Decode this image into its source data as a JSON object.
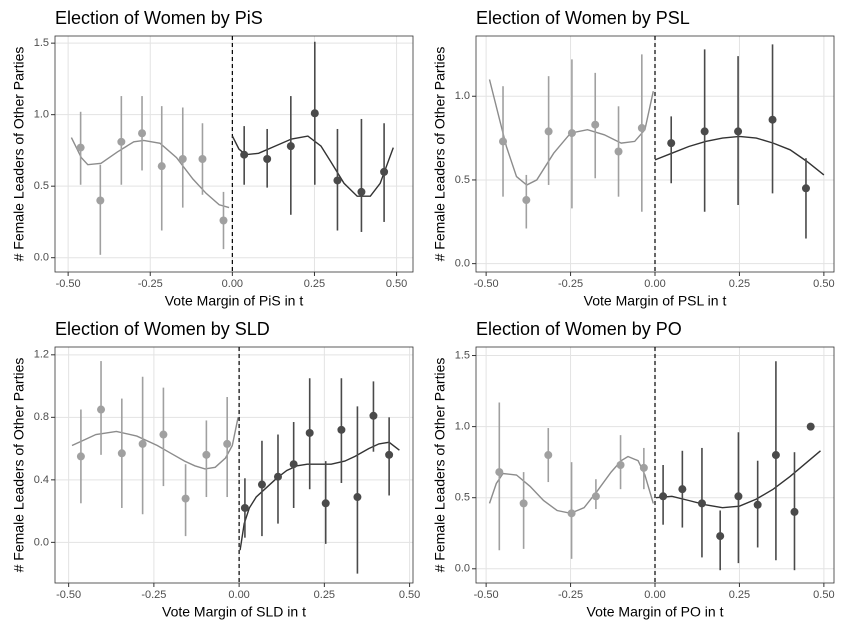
{
  "chart_data": [
    {
      "type": "scatter",
      "title": "Election of Women by PiS",
      "xlabel": "Vote Margin of PiS in t",
      "ylabel": "# Female Leaders of Other Parties",
      "xlim": [
        -0.54,
        0.55
      ],
      "ylim": [
        -0.1,
        1.55
      ],
      "cutoff": 0,
      "grid": true,
      "xticks": [
        {
          "value": -0.5,
          "label": "-0.50"
        },
        {
          "value": -0.25,
          "label": "-0.25"
        },
        {
          "value": 0,
          "label": "0.00"
        },
        {
          "value": 0.25,
          "label": "0.25"
        },
        {
          "value": 0.5,
          "label": "0.50"
        }
      ],
      "yticks": [
        {
          "value": 0,
          "label": "0.0"
        },
        {
          "value": 0.5,
          "label": "0.5"
        },
        {
          "value": 1,
          "label": "1.0"
        },
        {
          "value": 1.5,
          "label": "1.5"
        }
      ],
      "series": [
        {
          "color": "#a0a0a0",
          "x": [
            -0.462,
            -0.402,
            -0.338,
            -0.275,
            -0.215,
            -0.151,
            -0.091,
            -0.027
          ],
          "values": [
            0.77,
            0.4,
            0.81,
            0.87,
            0.64,
            0.69,
            0.69,
            0.26
          ],
          "lower": [
            0.51,
            0.02,
            0.51,
            0.61,
            0.19,
            0.35,
            0.44,
            0.06
          ],
          "upper": [
            1.02,
            0.65,
            1.13,
            1.13,
            1.06,
            1.05,
            0.94,
            0.46
          ]
        },
        {
          "color": "#4a4a4a",
          "x": [
            0.036,
            0.106,
            0.178,
            0.251,
            0.32,
            0.393,
            0.462
          ],
          "values": [
            0.72,
            0.69,
            0.78,
            1.01,
            0.54,
            0.46,
            0.6
          ],
          "lower": [
            0.51,
            0.49,
            0.3,
            0.51,
            0.19,
            0.18,
            0.25
          ],
          "upper": [
            0.92,
            0.9,
            1.13,
            1.51,
            0.9,
            0.97,
            0.94
          ]
        }
      ],
      "fits": [
        {
          "color": "#8c8c8c",
          "x": [
            -0.49,
            -0.46,
            -0.44,
            -0.4,
            -0.35,
            -0.3,
            -0.27,
            -0.22,
            -0.17,
            -0.12,
            -0.08,
            -0.04,
            -0.01
          ],
          "values": [
            0.84,
            0.7,
            0.65,
            0.66,
            0.74,
            0.81,
            0.82,
            0.8,
            0.7,
            0.55,
            0.45,
            0.37,
            0.35
          ]
        },
        {
          "color": "#333333",
          "x": [
            0.0,
            0.02,
            0.04,
            0.08,
            0.13,
            0.18,
            0.23,
            0.27,
            0.3,
            0.34,
            0.38,
            0.42,
            0.45,
            0.49
          ],
          "values": [
            0.85,
            0.76,
            0.72,
            0.73,
            0.78,
            0.83,
            0.85,
            0.78,
            0.67,
            0.52,
            0.43,
            0.43,
            0.52,
            0.77
          ]
        }
      ]
    },
    {
      "type": "scatter",
      "title": "Election of Women by PSL",
      "xlabel": "Vote Margin of PSL in t",
      "ylabel": "# Female Leaders of Other Parties",
      "xlim": [
        -0.53,
        0.53
      ],
      "ylim": [
        -0.05,
        1.36
      ],
      "cutoff": 0,
      "grid": true,
      "xticks": [
        {
          "value": -0.5,
          "label": "-0.50"
        },
        {
          "value": -0.25,
          "label": "-0.25"
        },
        {
          "value": 0,
          "label": "0.00"
        },
        {
          "value": 0.25,
          "label": "0.25"
        },
        {
          "value": 0.5,
          "label": "0.50"
        }
      ],
      "yticks": [
        {
          "value": 0,
          "label": "0.0"
        },
        {
          "value": 0.5,
          "label": "0.5"
        },
        {
          "value": 1,
          "label": "1.0"
        }
      ],
      "series": [
        {
          "color": "#a0a0a0",
          "x": [
            -0.45,
            -0.381,
            -0.315,
            -0.246,
            -0.177,
            -0.108,
            -0.039
          ],
          "values": [
            0.73,
            0.38,
            0.79,
            0.78,
            0.83,
            0.67,
            0.81
          ],
          "lower": [
            0.4,
            0.21,
            0.47,
            0.33,
            0.51,
            0.4,
            0.31
          ],
          "upper": [
            1.06,
            0.53,
            1.12,
            1.22,
            1.14,
            0.94,
            1.25
          ]
        },
        {
          "color": "#4a4a4a",
          "x": [
            0.048,
            0.147,
            0.246,
            0.348,
            0.447
          ],
          "values": [
            0.72,
            0.79,
            0.79,
            0.86,
            0.45
          ],
          "lower": [
            0.48,
            0.31,
            0.35,
            0.42,
            0.15
          ],
          "upper": [
            0.88,
            1.28,
            1.24,
            1.31,
            0.63
          ]
        }
      ],
      "fits": [
        {
          "color": "#8c8c8c",
          "x": [
            -0.49,
            -0.46,
            -0.44,
            -0.41,
            -0.38,
            -0.35,
            -0.3,
            -0.25,
            -0.2,
            -0.15,
            -0.1,
            -0.06,
            -0.03,
            -0.005
          ],
          "values": [
            1.1,
            0.86,
            0.7,
            0.52,
            0.47,
            0.5,
            0.66,
            0.78,
            0.8,
            0.77,
            0.72,
            0.73,
            0.8,
            1.03
          ]
        },
        {
          "color": "#333333",
          "x": [
            0.0,
            0.05,
            0.1,
            0.15,
            0.2,
            0.25,
            0.3,
            0.35,
            0.4,
            0.45,
            0.5
          ],
          "values": [
            0.62,
            0.66,
            0.7,
            0.73,
            0.75,
            0.76,
            0.75,
            0.72,
            0.68,
            0.61,
            0.53
          ]
        }
      ]
    },
    {
      "type": "scatter",
      "title": "Election of Women by SLD",
      "xlabel": "Vote Margin of SLD in t",
      "ylabel": "# Female Leaders of Other Parties",
      "xlim": [
        -0.54,
        0.51
      ],
      "ylim": [
        -0.26,
        1.25
      ],
      "cutoff": 0,
      "grid": true,
      "xticks": [
        {
          "value": -0.5,
          "label": "-0.50"
        },
        {
          "value": -0.25,
          "label": "-0.25"
        },
        {
          "value": 0,
          "label": "0.00"
        },
        {
          "value": 0.25,
          "label": "0.25"
        },
        {
          "value": 0.5,
          "label": "0.50"
        }
      ],
      "yticks": [
        {
          "value": 0,
          "label": "0.0"
        },
        0.4,
        0.8,
        1.2
      ],
      "series": [
        {
          "color": "#a0a0a0",
          "x": [
            -0.464,
            -0.405,
            -0.344,
            -0.283,
            -0.222,
            -0.157,
            -0.096,
            -0.035
          ],
          "values": [
            0.55,
            0.85,
            0.57,
            0.63,
            0.69,
            0.28,
            0.56,
            0.63
          ],
          "lower": [
            0.25,
            0.56,
            0.22,
            0.18,
            0.36,
            0.04,
            0.29,
            0.29
          ],
          "upper": [
            0.85,
            1.16,
            0.92,
            1.06,
            0.99,
            0.5,
            0.78,
            0.93
          ]
        },
        {
          "color": "#4a4a4a",
          "x": [
            0.017,
            0.067,
            0.114,
            0.16,
            0.207,
            0.254,
            0.3,
            0.347,
            0.394,
            0.44
          ],
          "values": [
            0.22,
            0.37,
            0.42,
            0.5,
            0.7,
            0.25,
            0.72,
            0.29,
            0.81,
            0.56
          ],
          "lower": [
            0.03,
            0.04,
            0.12,
            0.22,
            0.34,
            -0.01,
            0.38,
            -0.2,
            0.58,
            0.3
          ],
          "upper": [
            0.41,
            0.65,
            0.69,
            0.77,
            1.05,
            0.52,
            1.05,
            0.87,
            1.03,
            0.8
          ]
        }
      ],
      "fits": [
        {
          "color": "#8c8c8c",
          "x": [
            -0.49,
            -0.45,
            -0.42,
            -0.36,
            -0.3,
            -0.24,
            -0.2,
            -0.16,
            -0.13,
            -0.1,
            -0.07,
            -0.04,
            -0.02,
            -0.003
          ],
          "values": [
            0.62,
            0.66,
            0.69,
            0.71,
            0.68,
            0.62,
            0.57,
            0.52,
            0.49,
            0.47,
            0.48,
            0.54,
            0.62,
            0.8
          ]
        },
        {
          "color": "#333333",
          "x": [
            0.003,
            0.015,
            0.03,
            0.05,
            0.08,
            0.11,
            0.14,
            0.17,
            0.2,
            0.24,
            0.27,
            0.31,
            0.34,
            0.38,
            0.41,
            0.44,
            0.47
          ],
          "values": [
            -0.05,
            0.12,
            0.22,
            0.29,
            0.35,
            0.41,
            0.46,
            0.49,
            0.5,
            0.5,
            0.5,
            0.52,
            0.55,
            0.6,
            0.63,
            0.64,
            0.59
          ]
        }
      ]
    },
    {
      "type": "scatter",
      "title": "Election of Women by PO",
      "xlabel": "Vote Margin of PO in t",
      "ylabel": "# Female Leaders of Other Parties",
      "xlim": [
        -0.53,
        0.53
      ],
      "ylim": [
        -0.1,
        1.56
      ],
      "cutoff": 0,
      "grid": true,
      "xticks": [
        {
          "value": -0.5,
          "label": "-0.50"
        },
        {
          "value": -0.25,
          "label": "-0.25"
        },
        {
          "value": 0,
          "label": "0.00"
        },
        {
          "value": 0.25,
          "label": "0.25"
        },
        {
          "value": 0.5,
          "label": "0.50"
        }
      ],
      "yticks": [
        {
          "value": 0,
          "label": "0.0"
        },
        {
          "value": 0.5,
          "label": "0.5"
        },
        {
          "value": 1,
          "label": "1.0"
        },
        {
          "value": 1.5,
          "label": "1.5"
        }
      ],
      "series": [
        {
          "color": "#a0a0a0",
          "x": [
            -0.461,
            -0.389,
            -0.316,
            -0.247,
            -0.175,
            -0.102,
            -0.033
          ],
          "values": [
            0.68,
            0.46,
            0.8,
            0.39,
            0.51,
            0.73,
            0.71
          ],
          "lower": [
            0.13,
            0.14,
            0.61,
            0.07,
            0.42,
            0.56,
            0.56
          ],
          "upper": [
            1.17,
            0.68,
            0.99,
            0.75,
            0.63,
            0.94,
            0.85
          ]
        },
        {
          "color": "#4a4a4a",
          "x": [
            0.024,
            0.081,
            0.139,
            0.193,
            0.247,
            0.304,
            0.358,
            0.413,
            0.461
          ],
          "values": [
            0.51,
            0.56,
            0.46,
            0.23,
            0.51,
            0.45,
            0.8,
            0.4,
            1.0
          ],
          "lower": [
            0.31,
            0.29,
            0.08,
            -0.01,
            0.04,
            0.15,
            0.06,
            -0.01,
            null
          ],
          "upper": [
            0.73,
            0.83,
            0.85,
            0.41,
            0.96,
            0.76,
            1.46,
            0.82,
            null
          ]
        }
      ],
      "fits": [
        {
          "color": "#8c8c8c",
          "x": [
            -0.49,
            -0.47,
            -0.45,
            -0.41,
            -0.37,
            -0.33,
            -0.29,
            -0.25,
            -0.21,
            -0.17,
            -0.13,
            -0.1,
            -0.08,
            -0.05,
            -0.03,
            -0.005
          ],
          "values": [
            0.46,
            0.6,
            0.67,
            0.66,
            0.58,
            0.48,
            0.41,
            0.39,
            0.43,
            0.55,
            0.68,
            0.76,
            0.79,
            0.76,
            0.66,
            0.46
          ]
        },
        {
          "color": "#333333",
          "x": [
            0.003,
            0.05,
            0.1,
            0.15,
            0.2,
            0.25,
            0.3,
            0.35,
            0.4,
            0.45,
            0.49
          ],
          "values": [
            0.5,
            0.51,
            0.48,
            0.45,
            0.43,
            0.44,
            0.49,
            0.56,
            0.65,
            0.75,
            0.83
          ]
        }
      ]
    }
  ]
}
